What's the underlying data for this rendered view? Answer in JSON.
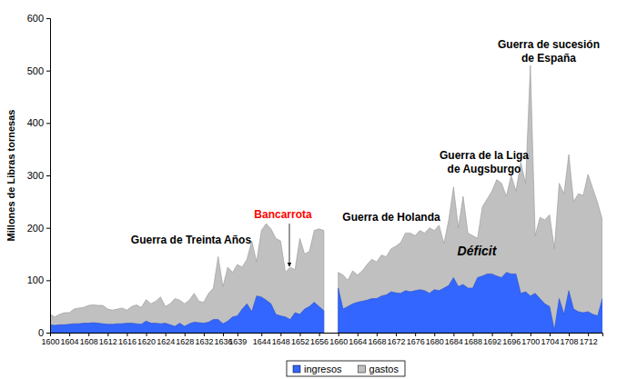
{
  "chart_data": {
    "type": "area",
    "stacked": false,
    "y_label": "Millones de Libras tornesas",
    "x": [
      1600,
      1601,
      1602,
      1603,
      1604,
      1605,
      1606,
      1607,
      1608,
      1609,
      1610,
      1611,
      1612,
      1613,
      1614,
      1615,
      1616,
      1617,
      1618,
      1619,
      1620,
      1621,
      1622,
      1623,
      1624,
      1625,
      1626,
      1627,
      1628,
      1629,
      1630,
      1631,
      1632,
      1633,
      1634,
      1635,
      1636,
      1637,
      1638,
      1639,
      1640,
      1641,
      1642,
      1643,
      1644,
      1645,
      1646,
      1647,
      1648,
      1649,
      1650,
      1651,
      1652,
      1653,
      1654,
      1655,
      1656,
      1657,
      1658,
      1659,
      1660,
      1661,
      1662,
      1663,
      1664,
      1665,
      1666,
      1667,
      1668,
      1669,
      1670,
      1671,
      1672,
      1673,
      1674,
      1675,
      1676,
      1677,
      1678,
      1679,
      1680,
      1681,
      1682,
      1683,
      1684,
      1685,
      1686,
      1687,
      1688,
      1689,
      1690,
      1691,
      1692,
      1693,
      1694,
      1695,
      1696,
      1697,
      1698,
      1699,
      1700,
      1701,
      1702,
      1703,
      1704,
      1705,
      1706,
      1707,
      1708,
      1709,
      1710,
      1711,
      1712,
      1713,
      1714,
      1715
    ],
    "series": [
      {
        "name": "ingresos",
        "color": "#3366ff",
        "values": [
          15,
          14,
          15,
          15,
          16,
          17,
          17,
          18,
          18,
          19,
          18,
          17,
          16,
          16,
          17,
          17,
          18,
          18,
          17,
          16,
          22,
          18,
          18,
          17,
          18,
          15,
          12,
          18,
          12,
          17,
          20,
          19,
          18,
          20,
          25,
          25,
          17,
          22,
          30,
          32,
          45,
          55,
          40,
          70,
          68,
          62,
          55,
          35,
          32,
          30,
          25,
          38,
          35,
          45,
          50,
          58,
          50,
          42,
          null,
          null,
          85,
          45,
          50,
          55,
          58,
          60,
          62,
          65,
          65,
          70,
          72,
          78,
          76,
          75,
          80,
          78,
          80,
          82,
          80,
          75,
          82,
          80,
          85,
          90,
          105,
          88,
          92,
          85,
          85,
          105,
          108,
          112,
          112,
          108,
          105,
          115,
          112,
          112,
          75,
          78,
          70,
          75,
          65,
          55,
          50,
          5,
          65,
          35,
          80,
          45,
          40,
          38,
          40,
          35,
          32,
          65
        ]
      },
      {
        "name": "gastos",
        "color": "#c0c0c0",
        "values": [
          35,
          30,
          35,
          38,
          38,
          45,
          47,
          48,
          52,
          53,
          52,
          52,
          45,
          43,
          45,
          47,
          43,
          50,
          53,
          48,
          63,
          55,
          60,
          68,
          50,
          55,
          65,
          62,
          55,
          62,
          75,
          60,
          58,
          75,
          85,
          145,
          88,
          125,
          115,
          130,
          125,
          140,
          175,
          135,
          195,
          208,
          198,
          180,
          175,
          115,
          125,
          120,
          180,
          150,
          155,
          195,
          198,
          195,
          null,
          null,
          115,
          110,
          100,
          118,
          110,
          118,
          130,
          140,
          135,
          148,
          145,
          160,
          165,
          172,
          190,
          190,
          185,
          195,
          190,
          200,
          195,
          205,
          170,
          215,
          278,
          200,
          260,
          190,
          185,
          180,
          240,
          255,
          270,
          292,
          285,
          260,
          300,
          270,
          325,
          285,
          510,
          185,
          220,
          215,
          225,
          160,
          285,
          265,
          340,
          250,
          265,
          262,
          302,
          275,
          248,
          215
        ]
      }
    ],
    "xlim": [
      1600,
      1715
    ],
    "xticks": [
      1600,
      1604,
      1608,
      1612,
      1616,
      1620,
      1624,
      1628,
      1632,
      1636,
      1639,
      1644,
      1648,
      1652,
      1656,
      1660,
      1664,
      1668,
      1672,
      1676,
      1680,
      1684,
      1688,
      1692,
      1696,
      1700,
      1704,
      1708,
      1712
    ],
    "ylim": [
      0,
      600
    ],
    "yticks": [
      0,
      100,
      200,
      300,
      400,
      500,
      600
    ],
    "legend": "bottom",
    "annotations": [
      {
        "text": [
          "Guerra de Treinta Años"
        ]
      },
      {
        "text": [
          "Bancarrota"
        ],
        "color": "#ff0000"
      },
      {
        "text": [
          "Guerra de Holanda"
        ]
      },
      {
        "text": [
          "Déficit"
        ]
      },
      {
        "text": [
          "Guerra de la Liga",
          "de Augsburgo"
        ]
      },
      {
        "text": [
          "Guerra de sucesión",
          "de España"
        ]
      }
    ]
  }
}
